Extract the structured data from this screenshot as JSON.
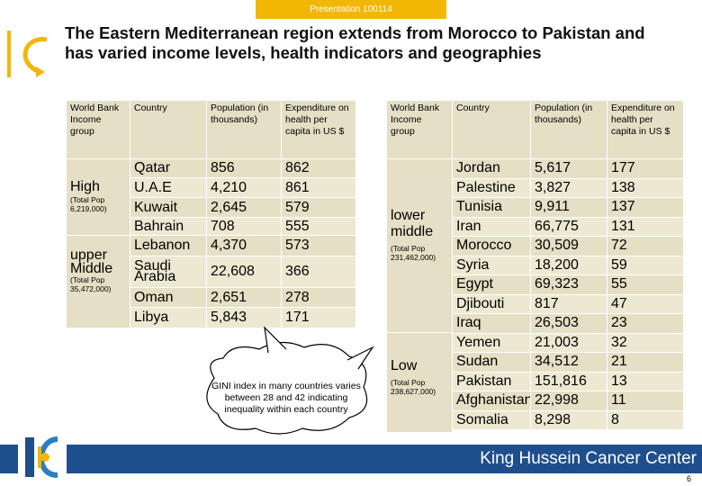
{
  "header": {
    "presentation_label": "Presentation 100114"
  },
  "title": "The Eastern Mediterranean region extends from Morocco to Pakistan and has varied income levels, health indicators and geographies",
  "left_table": {
    "headers": {
      "group": "World Bank Income group",
      "country": "Country",
      "population": "Population (in thousands)",
      "expenditure": "Expenditure on health per capita in US $"
    },
    "groups": [
      {
        "name": "High",
        "note": "(Total Pop 6,219,000)"
      },
      {
        "name": "upper Middle",
        "note": "(Total Pop 35,472,000)"
      }
    ],
    "rows": [
      {
        "country": "Qatar",
        "population": "856",
        "expenditure": "862"
      },
      {
        "country": "U.A.E",
        "population": "4,210",
        "expenditure": "861"
      },
      {
        "country": "Kuwait",
        "population": "2,645",
        "expenditure": "579"
      },
      {
        "country": "Bahrain",
        "population": "708",
        "expenditure": "555"
      },
      {
        "country": "Lebanon",
        "population": "4,370",
        "expenditure": "573"
      },
      {
        "country": "Saudi Arabia",
        "population": "22,608",
        "expenditure": "366"
      },
      {
        "country": "Oman",
        "population": "2,651",
        "expenditure": "278"
      },
      {
        "country": "Libya",
        "population": "5,843",
        "expenditure": "171"
      }
    ]
  },
  "right_table": {
    "headers": {
      "group": "World Bank Income group",
      "country": "Country",
      "population": "Population (in thousands)",
      "expenditure": "Expenditure on health per capita in US $"
    },
    "groups": [
      {
        "name": "lower middle",
        "note": "(Total Pop 231,462,000)"
      },
      {
        "name": "Low",
        "note": "(Total Pop 238,627,000)"
      }
    ],
    "rows": [
      {
        "country": "Jordan",
        "population": "5,617",
        "expenditure": "177"
      },
      {
        "country": "Palestine",
        "population": "3,827",
        "expenditure": "138"
      },
      {
        "country": "Tunisia",
        "population": "9,911",
        "expenditure": "137"
      },
      {
        "country": "Iran",
        "population": "66,775",
        "expenditure": "131"
      },
      {
        "country": "Morocco",
        "population": "30,509",
        "expenditure": "72"
      },
      {
        "country": "Syria",
        "population": "18,200",
        "expenditure": "59"
      },
      {
        "country": "Egypt",
        "population": "69,323",
        "expenditure": "55"
      },
      {
        "country": "Djibouti",
        "population": "817",
        "expenditure": "47"
      },
      {
        "country": "Iraq",
        "population": "26,503",
        "expenditure": "23"
      },
      {
        "country": "Yemen",
        "population": "21,003",
        "expenditure": "32"
      },
      {
        "country": "Sudan",
        "population": "34,512",
        "expenditure": "21"
      },
      {
        "country": "Pakistan",
        "population": "151,816",
        "expenditure": "13"
      },
      {
        "country": "Afghanistan",
        "population": "22,998",
        "expenditure": "11"
      },
      {
        "country": "Somalia",
        "population": "8,298",
        "expenditure": "8"
      }
    ]
  },
  "callout": "GINI index in many countries varies between 28 and 42 indicating inequality within each country",
  "footer": {
    "org_name": "King Hussein Cancer Center",
    "page_number": "6"
  },
  "colors": {
    "accent": "#f2b705",
    "footer_bg": "#1f4e8c",
    "table_bg": "#e5dfc5"
  },
  "icons": {
    "logo": "khcc-logo-icon",
    "swoosh": "swoosh-icon"
  }
}
